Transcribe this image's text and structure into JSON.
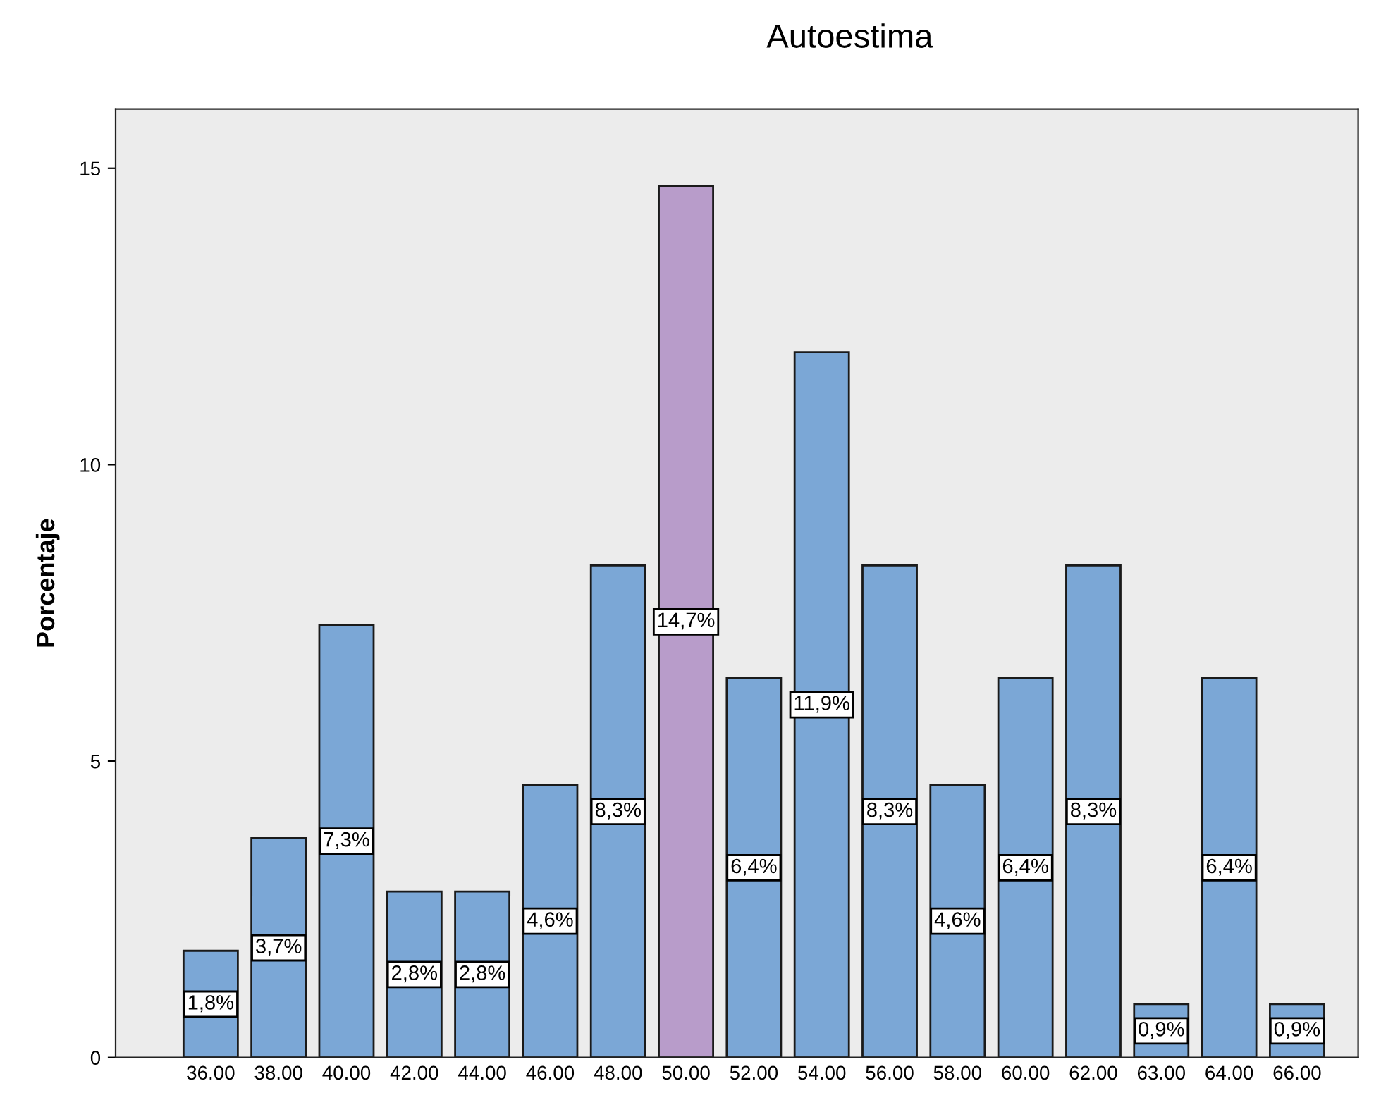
{
  "chart_data": {
    "type": "bar",
    "title": "Autoestima",
    "ylabel": "Porcentaje",
    "categories": [
      "36.00",
      "38.00",
      "40.00",
      "42.00",
      "44.00",
      "46.00",
      "48.00",
      "50.00",
      "52.00",
      "54.00",
      "56.00",
      "58.00",
      "60.00",
      "62.00",
      "63.00",
      "64.00",
      "66.00"
    ],
    "values": [
      1.8,
      3.7,
      7.3,
      2.8,
      2.8,
      4.6,
      8.3,
      14.7,
      6.4,
      11.9,
      8.3,
      4.6,
      6.4,
      8.3,
      0.9,
      6.4,
      0.9
    ],
    "value_labels": [
      "1,8%",
      "3,7%",
      "7,3%",
      "2,8%",
      "2,8%",
      "4,6%",
      "8,3%",
      "14,7%",
      "6,4%",
      "11,9%",
      "8,3%",
      "4,6%",
      "6,4%",
      "8,3%",
      "0,9%",
      "6,4%",
      "0,9%"
    ],
    "colors": [
      "#7ba7d6",
      "#7ba7d6",
      "#7ba7d6",
      "#7ba7d6",
      "#7ba7d6",
      "#7ba7d6",
      "#7ba7d6",
      "#b89cca",
      "#7ba7d6",
      "#7ba7d6",
      "#7ba7d6",
      "#7ba7d6",
      "#7ba7d6",
      "#7ba7d6",
      "#7ba7d6",
      "#7ba7d6",
      "#7ba7d6"
    ],
    "ylim": [
      0,
      16
    ],
    "yticks": [
      0,
      5,
      10,
      15
    ],
    "grid": false
  }
}
